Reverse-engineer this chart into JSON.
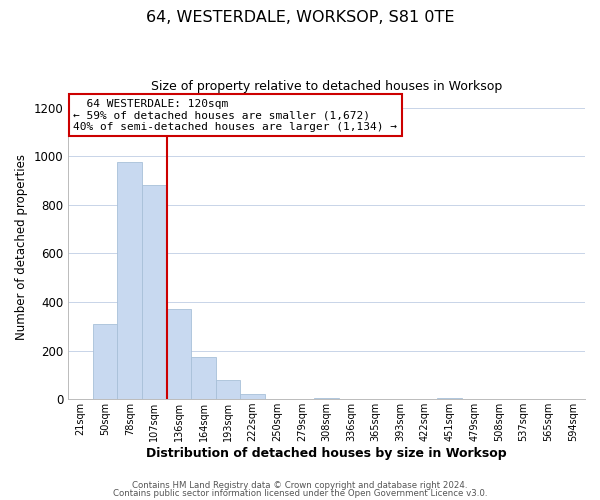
{
  "title": "64, WESTERDALE, WORKSOP, S81 0TE",
  "subtitle": "Size of property relative to detached houses in Worksop",
  "xlabel": "Distribution of detached houses by size in Worksop",
  "ylabel": "Number of detached properties",
  "bar_color": "#c8d9f0",
  "bar_edge_color": "#a8c0d8",
  "bin_labels": [
    "21sqm",
    "50sqm",
    "78sqm",
    "107sqm",
    "136sqm",
    "164sqm",
    "193sqm",
    "222sqm",
    "250sqm",
    "279sqm",
    "308sqm",
    "336sqm",
    "365sqm",
    "393sqm",
    "422sqm",
    "451sqm",
    "479sqm",
    "508sqm",
    "537sqm",
    "565sqm",
    "594sqm"
  ],
  "bar_values": [
    0,
    310,
    975,
    880,
    370,
    175,
    80,
    20,
    0,
    0,
    5,
    0,
    0,
    0,
    0,
    5,
    0,
    0,
    0,
    0,
    0
  ],
  "vline_color": "#cc0000",
  "annotation_title": "64 WESTERDALE: 120sqm",
  "annotation_line1": "← 59% of detached houses are smaller (1,672)",
  "annotation_line2": "40% of semi-detached houses are larger (1,134) →",
  "annotation_box_color": "#ffffff",
  "annotation_box_edge": "#cc0000",
  "ylim": [
    0,
    1250
  ],
  "yticks": [
    0,
    200,
    400,
    600,
    800,
    1000,
    1200
  ],
  "footer1": "Contains HM Land Registry data © Crown copyright and database right 2024.",
  "footer2": "Contains public sector information licensed under the Open Government Licence v3.0.",
  "figsize": [
    6.0,
    5.0
  ],
  "dpi": 100,
  "background_color": "#ffffff",
  "grid_color": "#c8d4e8"
}
